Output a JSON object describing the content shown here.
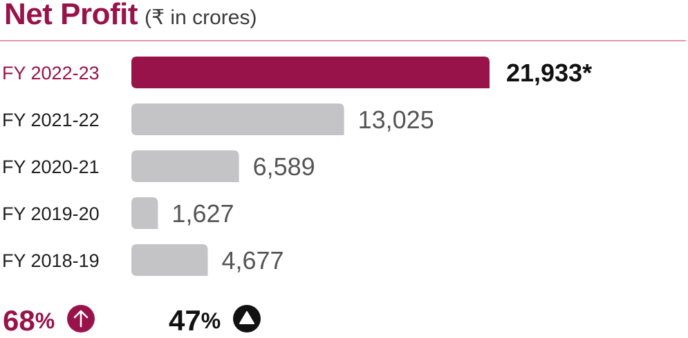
{
  "header": {
    "title": "Net Profit",
    "subtitle": "(₹ in crores)"
  },
  "colors": {
    "accent": "#99134b",
    "bar_neutral": "#c4c4c6",
    "label_text": "#1f1f1f",
    "value_text": "#555555",
    "rule": "#d99aae"
  },
  "chart_data": {
    "type": "bar",
    "orientation": "horizontal",
    "title": "Net Profit",
    "subtitle": "(₹ in crores)",
    "categories": [
      "FY 2022-23",
      "FY 2021-22",
      "FY 2020-21",
      "FY 2019-20",
      "FY 2018-19"
    ],
    "values": [
      21933,
      13025,
      6589,
      1627,
      4677
    ],
    "value_labels": [
      "21,933*",
      "13,025",
      "6,589",
      "1,627",
      "4,677"
    ],
    "highlight_index": 0,
    "xlim": [
      0,
      21933
    ],
    "grid": false,
    "legend": "none"
  },
  "stats": {
    "left": {
      "number": "68",
      "suffix": "%",
      "icon": "arrow-up-circle-icon"
    },
    "right": {
      "number": "47",
      "suffix": "%",
      "icon": "triangle-up-circle-icon"
    }
  }
}
